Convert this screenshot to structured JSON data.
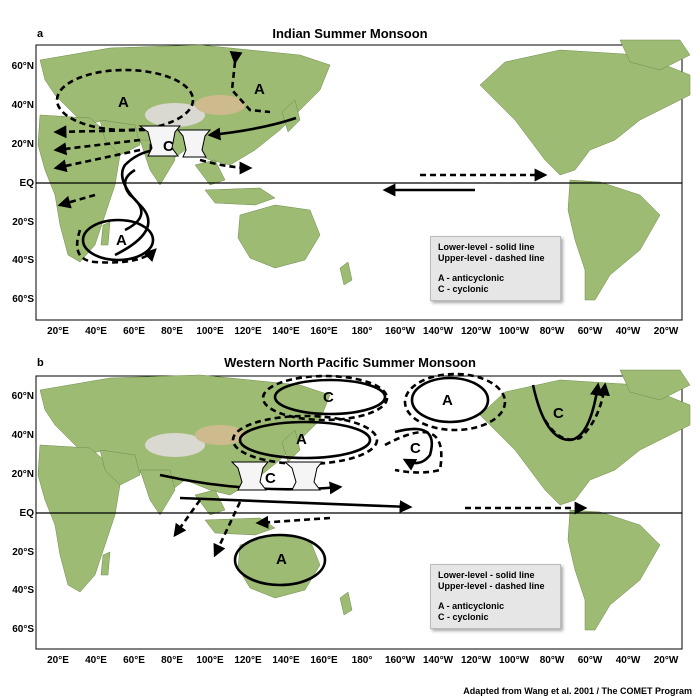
{
  "panels": [
    {
      "letter": "a",
      "title": "Indian Summer Monsoon",
      "lat_labels": [
        "60°N",
        "40°N",
        "20°N",
        "EQ",
        "20°S",
        "40°S",
        "60°S"
      ],
      "lon_labels": [
        "20°E",
        "40°E",
        "60°E",
        "80°E",
        "100°E",
        "120°E",
        "140°E",
        "160°E",
        "180°",
        "160°W",
        "140°W",
        "120°W",
        "100°W",
        "80°W",
        "60°W",
        "40°W",
        "20°W"
      ],
      "legend": [
        "Lower-level - solid line",
        "Upper-level - dashed line",
        "",
        "A - anticyclonic",
        "C - cyclonic"
      ],
      "systems": [
        "A",
        "A",
        "C",
        "A"
      ]
    },
    {
      "letter": "b",
      "title": "Western North Pacific Summer Monsoon",
      "lat_labels": [
        "60°N",
        "40°N",
        "20°N",
        "EQ",
        "20°S",
        "40°S",
        "60°S"
      ],
      "lon_labels": [
        "20°E",
        "40°E",
        "60°E",
        "80°E",
        "100°E",
        "120°E",
        "140°E",
        "160°E",
        "180°",
        "160°W",
        "140°W",
        "120°W",
        "100°W",
        "80°W",
        "60°W",
        "40°W",
        "20°W"
      ],
      "legend": [
        "Lower-level - solid line",
        "Upper-level - dashed line",
        "",
        "A - anticyclonic",
        "C - cyclonic"
      ],
      "systems": [
        "C",
        "A",
        "C",
        "C",
        "A",
        "A",
        "C"
      ]
    }
  ],
  "credit": "Adapted from Wang et al. 2001 / The COMET Program",
  "colors": {
    "ocean": "#ffffff",
    "land_low": "#8fb36a",
    "land_high": "#c9b98a",
    "ice": "#e6e6e6"
  }
}
